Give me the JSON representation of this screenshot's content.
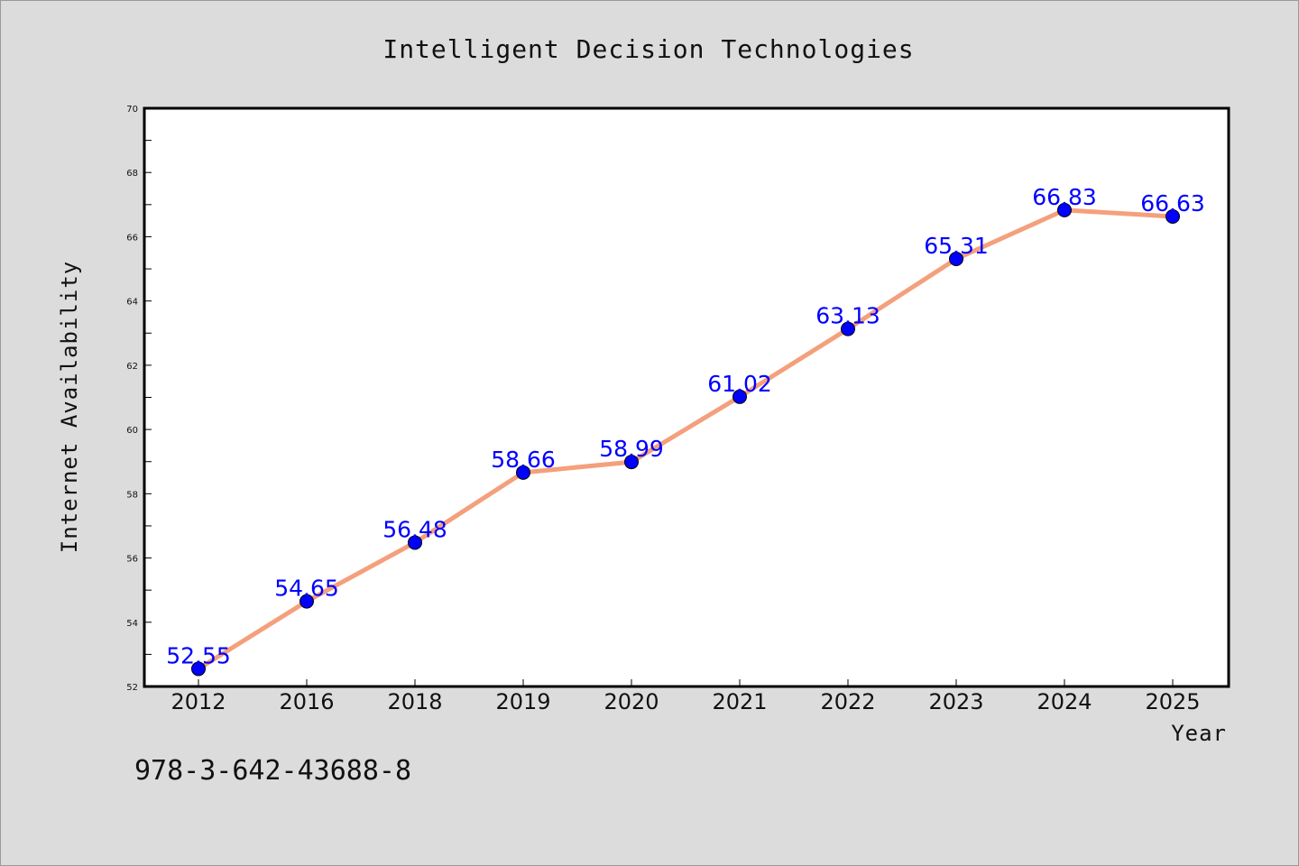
{
  "chart_data": {
    "type": "line",
    "title": "Intelligent Decision Technologies",
    "xlabel": "Year",
    "ylabel": "Internet Availability",
    "categories": [
      "2012",
      "2016",
      "2018",
      "2019",
      "2020",
      "2021",
      "2022",
      "2023",
      "2024",
      "2025"
    ],
    "series": [
      {
        "values": [
          52.55,
          54.65,
          56.48,
          58.66,
          58.99,
          61.02,
          63.13,
          65.31,
          66.83,
          66.63
        ],
        "labels": [
          "52.55",
          "54.65",
          "56.48",
          "58.66",
          "58.99",
          "61.02",
          "63.13",
          "65.31",
          "66.83",
          "66.63"
        ]
      }
    ],
    "ylim": [
      52,
      70
    ],
    "yticks": [
      52,
      54,
      56,
      58,
      60,
      62,
      64,
      66,
      68,
      70
    ],
    "grid": false,
    "line_color": "#f4a07c",
    "marker_color": "#0000ff",
    "label_color": "#0000ff",
    "annotation": "978-3-642-43688-8"
  }
}
